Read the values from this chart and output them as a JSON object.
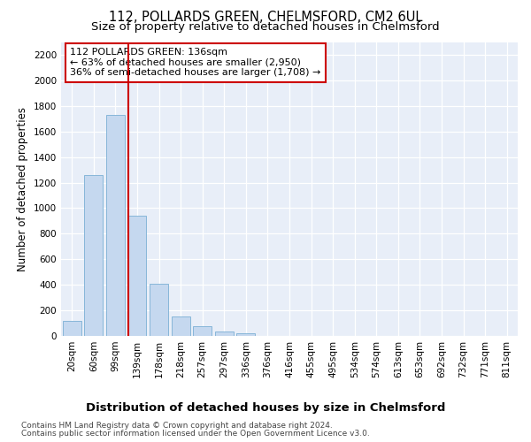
{
  "title": "112, POLLARDS GREEN, CHELMSFORD, CM2 6UL",
  "subtitle": "Size of property relative to detached houses in Chelmsford",
  "xlabel": "Distribution of detached houses by size in Chelmsford",
  "ylabel": "Number of detached properties",
  "categories": [
    "20sqm",
    "60sqm",
    "99sqm",
    "139sqm",
    "178sqm",
    "218sqm",
    "257sqm",
    "297sqm",
    "336sqm",
    "376sqm",
    "416sqm",
    "455sqm",
    "495sqm",
    "534sqm",
    "574sqm",
    "613sqm",
    "653sqm",
    "692sqm",
    "732sqm",
    "771sqm",
    "811sqm"
  ],
  "values": [
    120,
    1260,
    1730,
    940,
    405,
    150,
    75,
    35,
    20,
    0,
    0,
    0,
    0,
    0,
    0,
    0,
    0,
    0,
    0,
    0,
    0
  ],
  "bar_color": "#c5d8ef",
  "bar_edge_color": "#7aafd4",
  "vline_x_index": 3,
  "vline_color": "#cc0000",
  "annotation_line1": "112 POLLARDS GREEN: 136sqm",
  "annotation_line2": "← 63% of detached houses are smaller (2,950)",
  "annotation_line3": "36% of semi-detached houses are larger (1,708) →",
  "annotation_box_facecolor": "#ffffff",
  "annotation_box_edgecolor": "#cc0000",
  "ylim": [
    0,
    2300
  ],
  "yticks": [
    0,
    200,
    400,
    600,
    800,
    1000,
    1200,
    1400,
    1600,
    1800,
    2000,
    2200
  ],
  "footer_line1": "Contains HM Land Registry data © Crown copyright and database right 2024.",
  "footer_line2": "Contains public sector information licensed under the Open Government Licence v3.0.",
  "fig_facecolor": "#ffffff",
  "plot_facecolor": "#e8eef8",
  "grid_color": "#ffffff",
  "title_fontsize": 10.5,
  "subtitle_fontsize": 9.5,
  "ylabel_fontsize": 8.5,
  "xlabel_fontsize": 9.5,
  "tick_fontsize": 7.5,
  "annotation_fontsize": 8,
  "footer_fontsize": 6.5
}
